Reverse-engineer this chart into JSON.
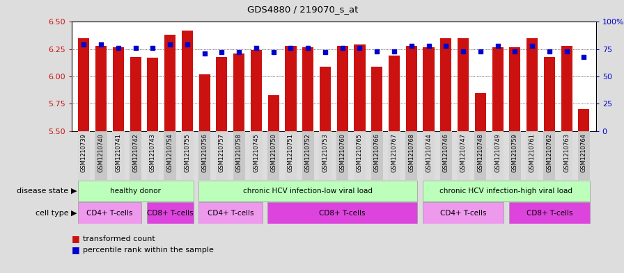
{
  "title": "GDS4880 / 219070_s_at",
  "samples": [
    "GSM1210739",
    "GSM1210740",
    "GSM1210741",
    "GSM1210742",
    "GSM1210743",
    "GSM1210754",
    "GSM1210755",
    "GSM1210756",
    "GSM1210757",
    "GSM1210758",
    "GSM1210745",
    "GSM1210750",
    "GSM1210751",
    "GSM1210752",
    "GSM1210753",
    "GSM1210760",
    "GSM1210765",
    "GSM1210766",
    "GSM1210767",
    "GSM1210768",
    "GSM1210744",
    "GSM1210746",
    "GSM1210747",
    "GSM1210748",
    "GSM1210749",
    "GSM1210759",
    "GSM1210761",
    "GSM1210762",
    "GSM1210763",
    "GSM1210764"
  ],
  "bar_values": [
    6.35,
    6.28,
    6.27,
    6.18,
    6.17,
    6.38,
    6.42,
    6.02,
    6.18,
    6.21,
    6.24,
    5.83,
    6.28,
    6.27,
    6.09,
    6.28,
    6.29,
    6.09,
    6.19,
    6.28,
    6.27,
    6.35,
    6.35,
    5.85,
    6.27,
    6.27,
    6.35,
    6.18,
    6.28,
    5.7
  ],
  "percentile_values": [
    79,
    79,
    76,
    76,
    76,
    79,
    79,
    71,
    72,
    72,
    76,
    72,
    76,
    76,
    72,
    76,
    76,
    73,
    73,
    78,
    78,
    78,
    73,
    73,
    78,
    73,
    78,
    73,
    73,
    68
  ],
  "ylim": [
    5.5,
    6.5
  ],
  "yticks": [
    5.5,
    5.75,
    6.0,
    6.25,
    6.5
  ],
  "right_ylim": [
    0,
    100
  ],
  "right_yticks": [
    0,
    25,
    50,
    75,
    100
  ],
  "right_yticklabels": [
    "0",
    "25",
    "50",
    "75",
    "100%"
  ],
  "bar_color": "#cc1111",
  "dot_color": "#0000cc",
  "figure_bg": "#dddddd",
  "plot_bg": "#ffffff",
  "xtick_bg_light": "#d8d8d8",
  "xtick_bg_dark": "#c8c8c8",
  "disease_color": "#bbffbb",
  "disease_groups": [
    {
      "label": "healthy donor",
      "start": 0,
      "end": 7
    },
    {
      "label": "chronic HCV infection-low viral load",
      "start": 7,
      "end": 20
    },
    {
      "label": "chronic HCV infection-high viral load",
      "start": 20,
      "end": 30
    }
  ],
  "cell_groups": [
    {
      "label": "CD4+ T-cells",
      "start": 0,
      "end": 4,
      "color": "#ee99ee"
    },
    {
      "label": "CD8+ T-cells",
      "start": 4,
      "end": 7,
      "color": "#dd44dd"
    },
    {
      "label": "CD4+ T-cells",
      "start": 7,
      "end": 11,
      "color": "#ee99ee"
    },
    {
      "label": "CD8+ T-cells",
      "start": 11,
      "end": 20,
      "color": "#dd44dd"
    },
    {
      "label": "CD4+ T-cells",
      "start": 20,
      "end": 25,
      "color": "#ee99ee"
    },
    {
      "label": "CD8+ T-cells",
      "start": 25,
      "end": 30,
      "color": "#dd44dd"
    }
  ]
}
